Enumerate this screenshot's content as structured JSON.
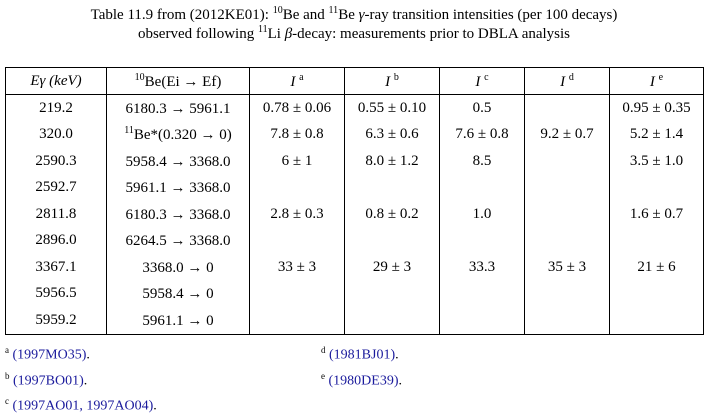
{
  "caption": {
    "line1_a": "Table 11.9 from (2012KE01): ",
    "be_mass": "10",
    "line1_b": "Be and ",
    "be11_mass": "11",
    "line1_c": "Be ",
    "gamma": "γ",
    "line1_d": "-ray transition intensities (per 100 decays)",
    "line2_a": "observed following ",
    "li_mass": "11",
    "line2_b": "Li ",
    "beta": "β",
    "line2_c": "-decay: measurements prior to DBLA analysis"
  },
  "headers": {
    "energy": "Eγ (keV)",
    "transition_mass": "10",
    "transition": "Be(Ei → Ef)",
    "ia": "I",
    "ia_sup": "a",
    "ib": "I",
    "ib_sup": "b",
    "ic": "I",
    "ic_sup": "c",
    "id": "I",
    "id_sup": "d",
    "ie": "I",
    "ie_sup": "e"
  },
  "rows": [
    {
      "energy": "219.2",
      "mass": "",
      "transition": "6180.3 → 5961.1",
      "ia": "0.78 ± 0.06",
      "ib": "0.55 ± 0.10",
      "ic": "0.5",
      "id": "",
      "ie": "0.95 ± 0.35"
    },
    {
      "energy": "320.0",
      "mass": "11",
      "transition": "Be*(0.320 → 0)",
      "ia": "7.8 ± 0.8",
      "ib": "6.3 ± 0.6",
      "ic": "7.6 ± 0.8",
      "id": "9.2 ± 0.7",
      "ie": "5.2 ± 1.4"
    },
    {
      "energy": "2590.3",
      "mass": "",
      "transition": "5958.4 → 3368.0",
      "ia": "6 ± 1",
      "ib": "8.0 ± 1.2",
      "ic": "8.5",
      "id": "",
      "ie": "3.5 ± 1.0"
    },
    {
      "energy": "2592.7",
      "mass": "",
      "transition": "5961.1 → 3368.0",
      "ia": "",
      "ib": "",
      "ic": "",
      "id": "",
      "ie": ""
    },
    {
      "energy": "2811.8",
      "mass": "",
      "transition": "6180.3 → 3368.0",
      "ia": "2.8 ± 0.3",
      "ib": "0.8 ± 0.2",
      "ic": "1.0",
      "id": "",
      "ie": "1.6 ± 0.7"
    },
    {
      "energy": "2896.0",
      "mass": "",
      "transition": "6264.5 → 3368.0",
      "ia": "",
      "ib": "",
      "ic": "",
      "id": "",
      "ie": ""
    },
    {
      "energy": "3367.1",
      "mass": "",
      "transition": "3368.0 → 0",
      "ia": "33 ± 3",
      "ib": "29 ± 3",
      "ic": "33.3",
      "id": "35 ± 3",
      "ie": "21 ± 6"
    },
    {
      "energy": "5956.5",
      "mass": "",
      "transition": "5958.4 → 0",
      "ia": "",
      "ib": "",
      "ic": "",
      "id": "",
      "ie": ""
    },
    {
      "energy": "5959.2",
      "mass": "",
      "transition": "5961.1 → 0",
      "ia": "",
      "ib": "",
      "ic": "",
      "id": "",
      "ie": ""
    }
  ],
  "footnotes": {
    "a": {
      "mark": "a",
      "ref": "(1997MO35)",
      "tail": "."
    },
    "b": {
      "mark": "b",
      "ref": "(1997BO01)",
      "tail": "."
    },
    "c": {
      "mark": "c",
      "ref": "(1997AO01, 1997AO04)",
      "tail": "."
    },
    "d": {
      "mark": "d",
      "ref": "(1981BJ01)",
      "tail": "."
    },
    "e": {
      "mark": "e",
      "ref": "(1980DE39)",
      "tail": "."
    }
  }
}
